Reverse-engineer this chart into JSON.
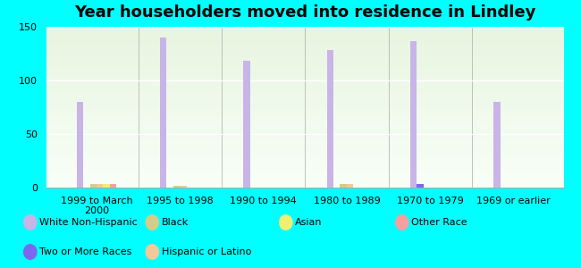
{
  "title": "Year householders moved into residence in Lindley",
  "background_color": "#00FFFF",
  "categories": [
    "1999 to March\n2000",
    "1995 to 1998",
    "1990 to 1994",
    "1980 to 1989",
    "1970 to 1979",
    "1969 or earlier"
  ],
  "series": {
    "White Non-Hispanic": {
      "values": [
        80,
        140,
        118,
        128,
        137,
        80
      ],
      "color": "#c9b4e8"
    },
    "Two or More Races": {
      "values": [
        0,
        0,
        0,
        0,
        3,
        0
      ],
      "color": "#7b68ee"
    },
    "Black": {
      "values": [
        3,
        2,
        0,
        3,
        0,
        0
      ],
      "color": "#d4cc8a"
    },
    "Hispanic or Latino": {
      "values": [
        3,
        2,
        0,
        3,
        0,
        0
      ],
      "color": "#f5c89a"
    },
    "Asian": {
      "values": [
        3,
        0,
        0,
        0,
        0,
        0
      ],
      "color": "#f0f070"
    },
    "Other Race": {
      "values": [
        3,
        0,
        0,
        0,
        0,
        0
      ],
      "color": "#f5a0a0"
    }
  },
  "ylim": [
    0,
    150
  ],
  "yticks": [
    0,
    50,
    100,
    150
  ],
  "bar_width": 0.08,
  "title_fontsize": 13,
  "tick_fontsize": 8,
  "legend_fontsize": 8
}
